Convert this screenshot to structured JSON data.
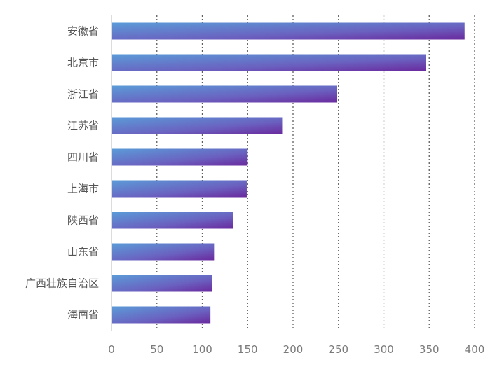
{
  "chart_data": {
    "type": "bar",
    "orientation": "horizontal",
    "categories": [
      "安徽省",
      "北京市",
      "浙江省",
      "江苏省",
      "四川省",
      "上海市",
      "陕西省",
      "山东省",
      "广西壮族自治区",
      "海南省"
    ],
    "values": [
      389,
      346,
      248,
      188,
      150,
      149,
      134,
      113,
      111,
      109
    ],
    "xlim": [
      0,
      400
    ],
    "xticks": [
      0,
      50,
      100,
      150,
      200,
      250,
      300,
      350,
      400
    ],
    "xtick_labels": [
      "0",
      "50",
      "100",
      "150",
      "200",
      "250",
      "300",
      "350",
      "400"
    ],
    "title": "",
    "xlabel": "",
    "ylabel": "",
    "grid": "vertical dotted",
    "legend": "none",
    "colors": {
      "bar_gradient_start": "#5b9bd8",
      "bar_gradient_mid": "#6a62c0",
      "bar_gradient_end": "#6a2a9e",
      "grid": "#5e5e5e",
      "axis": "#b8b8b8",
      "category_text": "#555555",
      "tick_text": "#7a7a7a"
    }
  }
}
